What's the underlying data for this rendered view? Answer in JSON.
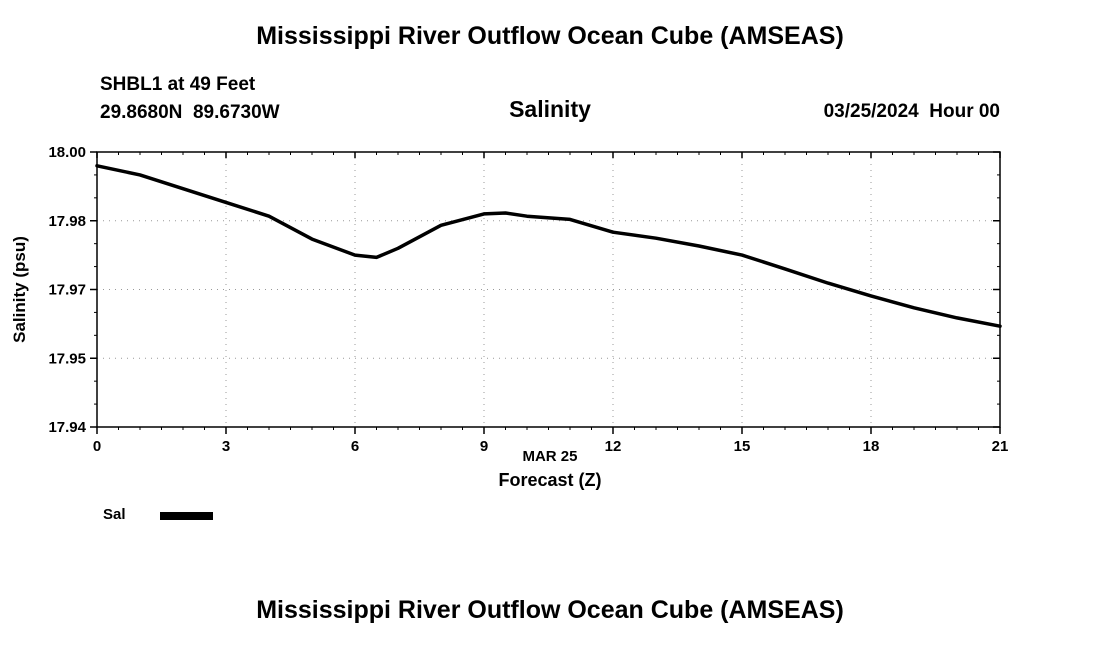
{
  "page": {
    "title_top": "Mississippi River Outflow Ocean Cube (AMSEAS)",
    "title_bottom": "Mississippi River Outflow Ocean Cube (AMSEAS)"
  },
  "station": {
    "line1": "SHBL1 at 49 Feet",
    "line2": "29.8680N  89.6730W"
  },
  "plot": {
    "subtitle": "Salinity",
    "datetime": "03/25/2024  Hour 00"
  },
  "legend": {
    "label": "Sal",
    "line_color": "#000000"
  },
  "chart_data": {
    "type": "line",
    "title": "Salinity",
    "xlabel_line1": "MAR 25",
    "xlabel_line2": "Forecast (Z)",
    "ylabel": "Salinity (psu)",
    "xlim": [
      0,
      21
    ],
    "ylim": [
      17.94,
      18.0
    ],
    "grid": true,
    "legend_position": "below-left",
    "x_ticks": [
      0,
      3,
      6,
      9,
      12,
      15,
      18,
      21
    ],
    "y_ticks": [
      {
        "value": 17.94,
        "label": "17.94"
      },
      {
        "value": 17.955,
        "label": "17.95"
      },
      {
        "value": 17.97,
        "label": "17.97"
      },
      {
        "value": 17.985,
        "label": "17.98"
      },
      {
        "value": 18.0,
        "label": "18.00"
      }
    ],
    "series": [
      {
        "name": "Sal",
        "color": "#000000",
        "x": [
          0,
          1,
          2,
          3,
          4,
          5,
          6,
          6.5,
          7,
          8,
          9,
          9.5,
          10,
          11,
          12,
          13,
          14,
          15,
          16,
          17,
          18,
          19,
          20,
          21
        ],
        "values": [
          17.997,
          17.995,
          17.992,
          17.989,
          17.986,
          17.981,
          17.9775,
          17.977,
          17.979,
          17.984,
          17.9865,
          17.9867,
          17.986,
          17.9853,
          17.9825,
          17.9812,
          17.9795,
          17.9775,
          17.9745,
          17.9714,
          17.9686,
          17.966,
          17.9638,
          17.962
        ]
      }
    ]
  }
}
